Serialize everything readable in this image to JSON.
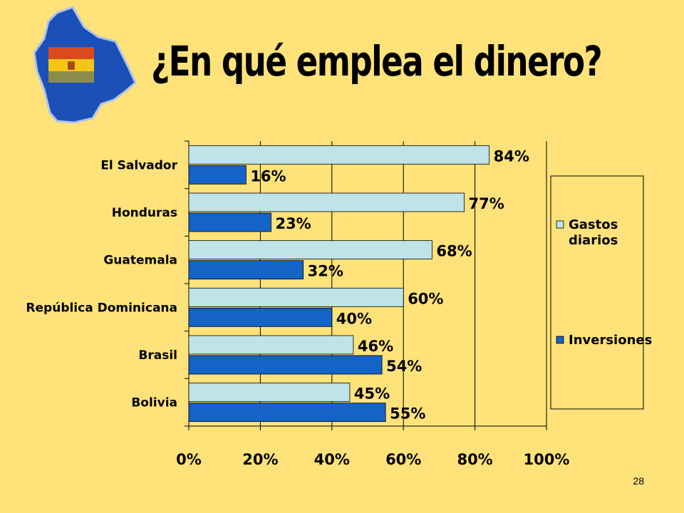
{
  "slide": {
    "title": "¿En qué emplea el dinero?",
    "page_number": "28",
    "colors": {
      "background": "#FFE27A",
      "map_fill": "#1A50B8",
      "flag_red": "#D94A1E",
      "flag_yellow": "#F5C518",
      "flag_green": "#8C8C4A"
    },
    "logo_icon": "bolivia-map-flag-icon"
  },
  "chart_data": {
    "type": "bar",
    "orientation": "horizontal",
    "categories": [
      "El Salvador",
      "Honduras",
      "Guatemala",
      "República Dominicana",
      "Brasil",
      "Bolivia"
    ],
    "series": [
      {
        "name": "Gastos diarios",
        "legend_lines": [
          "Gastos",
          "diarios"
        ],
        "values": [
          84,
          77,
          68,
          60,
          46,
          45
        ],
        "labels": [
          "84%",
          "77%",
          "68%",
          "60%",
          "46%",
          "45%"
        ],
        "color": "#BEE3E8"
      },
      {
        "name": "Inversiones",
        "legend_lines": [
          "Inversiones"
        ],
        "values": [
          16,
          23,
          32,
          40,
          54,
          55
        ],
        "labels": [
          "16%",
          "23%",
          "32%",
          "40%",
          "54%",
          "55%"
        ],
        "color": "#1463C8"
      }
    ],
    "x_ticks": [
      "0%",
      "20%",
      "40%",
      "60%",
      "80%",
      "100%"
    ],
    "xlim": [
      0,
      100
    ],
    "grid": "vertical",
    "legend_position": "right"
  }
}
